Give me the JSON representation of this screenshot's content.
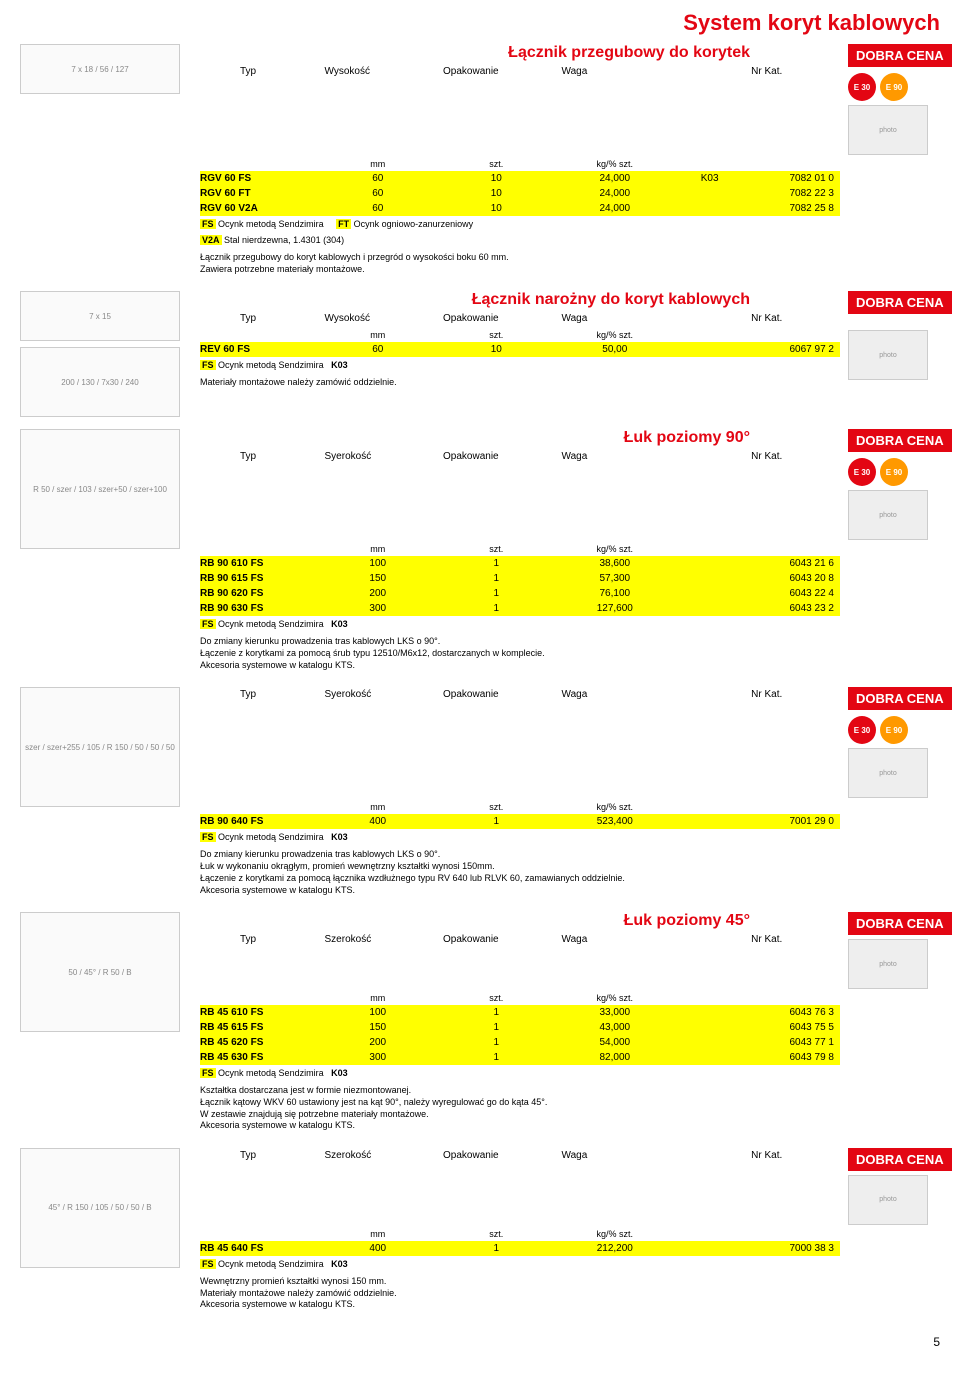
{
  "page_title": "System koryt kablowych",
  "badge_text": "DOBRA CENA",
  "icons": {
    "e30": "E 30",
    "e90": "E 90"
  },
  "units": {
    "mm": "mm",
    "szt": "szt.",
    "kg": "kg/% szt."
  },
  "header_cols": {
    "typ": "Typ",
    "wys": "Wysokość",
    "szer": "Syerokość",
    "szerokosc": "Szerokość",
    "opak": "Opakowanie",
    "waga": "Waga",
    "nrkat": "Nr Kat."
  },
  "legends": {
    "fs": "FS",
    "fs_text": "Ocynk metodą Sendzimira",
    "ft": "FT",
    "ft_text": "Ocynk ogniowo-zanurzeniowy",
    "v2a": "V2A",
    "v2a_text": "Stal nierdzewna, 1.4301 (304)",
    "k03": "K03"
  },
  "sec1": {
    "title": "Łącznik przegubowy do korytek",
    "rows": [
      {
        "typ": "RGV 60 FS",
        "a": "60",
        "b": "10",
        "c": "24,000",
        "d": "K03",
        "e": "7082 01 0"
      },
      {
        "typ": "RGV 60 FT",
        "a": "60",
        "b": "10",
        "c": "24,000",
        "d": "",
        "e": "7082 22 3"
      },
      {
        "typ": "RGV 60 V2A",
        "a": "60",
        "b": "10",
        "c": "24,000",
        "d": "",
        "e": "7082 25 8"
      }
    ],
    "desc": "Łącznik przegubowy do koryt kablowych i przegród o wysokości boku 60 mm.\nZawiera potrzebne materiały montażowe."
  },
  "sec2": {
    "title": "Łącznik narożny do koryt kablowych",
    "rows": [
      {
        "typ": "REV 60 FS",
        "a": "60",
        "b": "10",
        "c": "50,00",
        "d": "",
        "e": "6067 97 2"
      }
    ],
    "desc": "Materiały montażowe należy zamówić oddzielnie."
  },
  "sec3": {
    "title": "Łuk poziomy 90°",
    "rows": [
      {
        "typ": "RB 90 610 FS",
        "a": "100",
        "b": "1",
        "c": "38,600",
        "d": "",
        "e": "6043 21 6"
      },
      {
        "typ": "RB 90 615 FS",
        "a": "150",
        "b": "1",
        "c": "57,300",
        "d": "",
        "e": "6043 20 8"
      },
      {
        "typ": "RB 90 620 FS",
        "a": "200",
        "b": "1",
        "c": "76,100",
        "d": "",
        "e": "6043 22 4"
      },
      {
        "typ": "RB 90 630 FS",
        "a": "300",
        "b": "1",
        "c": "127,600",
        "d": "",
        "e": "6043 23 2"
      }
    ],
    "desc": "Do zmiany kierunku prowadzenia tras kablowych LKS o 90°.\nŁączenie z korytkami za pomocą śrub typu 12510/M6x12, dostarczanych w komplecie.\nAkcesoria systemowe w katalogu KTS."
  },
  "sec4": {
    "rows": [
      {
        "typ": "RB 90 640 FS",
        "a": "400",
        "b": "1",
        "c": "523,400",
        "d": "",
        "e": "7001 29 0"
      }
    ],
    "desc": "Do zmiany kierunku prowadzenia tras kablowych LKS o 90°.\nŁuk w wykonaniu okrągłym, promień wewnętrzny kształtki wynosi 150mm.\nŁączenie z korytkami za pomocą łącznika wzdłużnego typu RV 640 lub RLVK 60, zamawianych oddzielnie.\nAkcesoria systemowe w katalogu KTS."
  },
  "sec5": {
    "title": "Łuk poziomy 45°",
    "rows": [
      {
        "typ": "RB 45 610 FS",
        "a": "100",
        "b": "1",
        "c": "33,000",
        "d": "",
        "e": "6043 76 3"
      },
      {
        "typ": "RB 45 615 FS",
        "a": "150",
        "b": "1",
        "c": "43,000",
        "d": "",
        "e": "6043 75 5"
      },
      {
        "typ": "RB 45 620 FS",
        "a": "200",
        "b": "1",
        "c": "54,000",
        "d": "",
        "e": "6043 77 1"
      },
      {
        "typ": "RB 45 630 FS",
        "a": "300",
        "b": "1",
        "c": "82,000",
        "d": "",
        "e": "6043 79 8"
      }
    ],
    "desc": "Kształtka dostarczana jest w formie niezmontowanej.\nŁącznik kątowy WKV 60 ustawiony jest na kąt 90°, należy wyregulować go do kąta 45°.\nW zestawie znajdują się potrzebne materiały montażowe.\nAkcesoria systemowe w katalogu KTS."
  },
  "sec6": {
    "rows": [
      {
        "typ": "RB 45 640 FS",
        "a": "400",
        "b": "1",
        "c": "212,200",
        "d": "",
        "e": "7000 38 3"
      }
    ],
    "desc": "Wewnętrzny promień kształtki wynosi 150 mm.\nMateriały montażowe należy zamówić oddzielnie.\nAkcesoria systemowe w katalogu KTS."
  },
  "pagenum": "5"
}
